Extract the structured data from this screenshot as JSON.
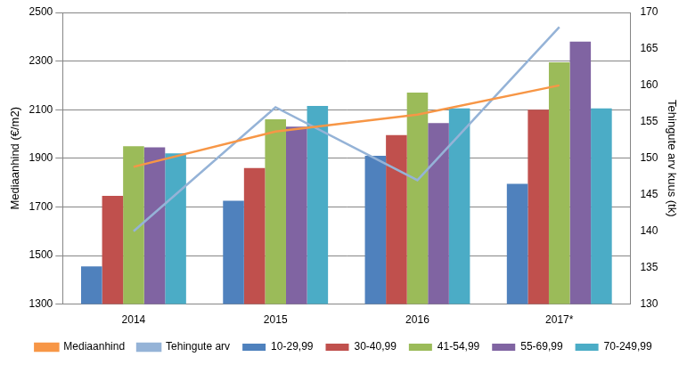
{
  "chart_data": {
    "type": "bar",
    "categories": [
      "2014",
      "2015",
      "2016",
      "2017*"
    ],
    "y_label": "Mediaanhind (€/m2)",
    "y2_label": "Tehingute arv kuus (tk)",
    "ylim": [
      1300,
      2500
    ],
    "yticks": [
      1300,
      1500,
      1700,
      1900,
      2100,
      2300,
      2500
    ],
    "y2lim": [
      130,
      170
    ],
    "y2ticks": [
      130,
      135,
      140,
      145,
      150,
      155,
      160,
      165,
      170
    ],
    "grid": true,
    "legend": "bottom",
    "series": [
      {
        "name": "10-29,99",
        "color": "#4F81BD",
        "values": [
          1455,
          1725,
          1910,
          1795
        ]
      },
      {
        "name": "30-40,99",
        "color": "#C0504D",
        "values": [
          1745,
          1860,
          1995,
          2100
        ]
      },
      {
        "name": "41-54,99",
        "color": "#9BBB59",
        "values": [
          1950,
          2060,
          2170,
          2295
        ]
      },
      {
        "name": "55-69,99",
        "color": "#8064A2",
        "values": [
          1945,
          2030,
          2045,
          2380
        ]
      },
      {
        "name": "70-249,99",
        "color": "#4BACC6",
        "values": [
          1920,
          2115,
          2105,
          2105
        ]
      },
      {
        "name": "Mediaanhind",
        "color": "#F79646",
        "type": "line",
        "values": [
          1865,
          2010,
          2080,
          2200
        ]
      },
      {
        "name": "Tehingute arv",
        "color": "#95B3D7",
        "type": "line",
        "axis": "y2",
        "values": [
          140,
          157,
          147,
          168
        ]
      }
    ]
  }
}
